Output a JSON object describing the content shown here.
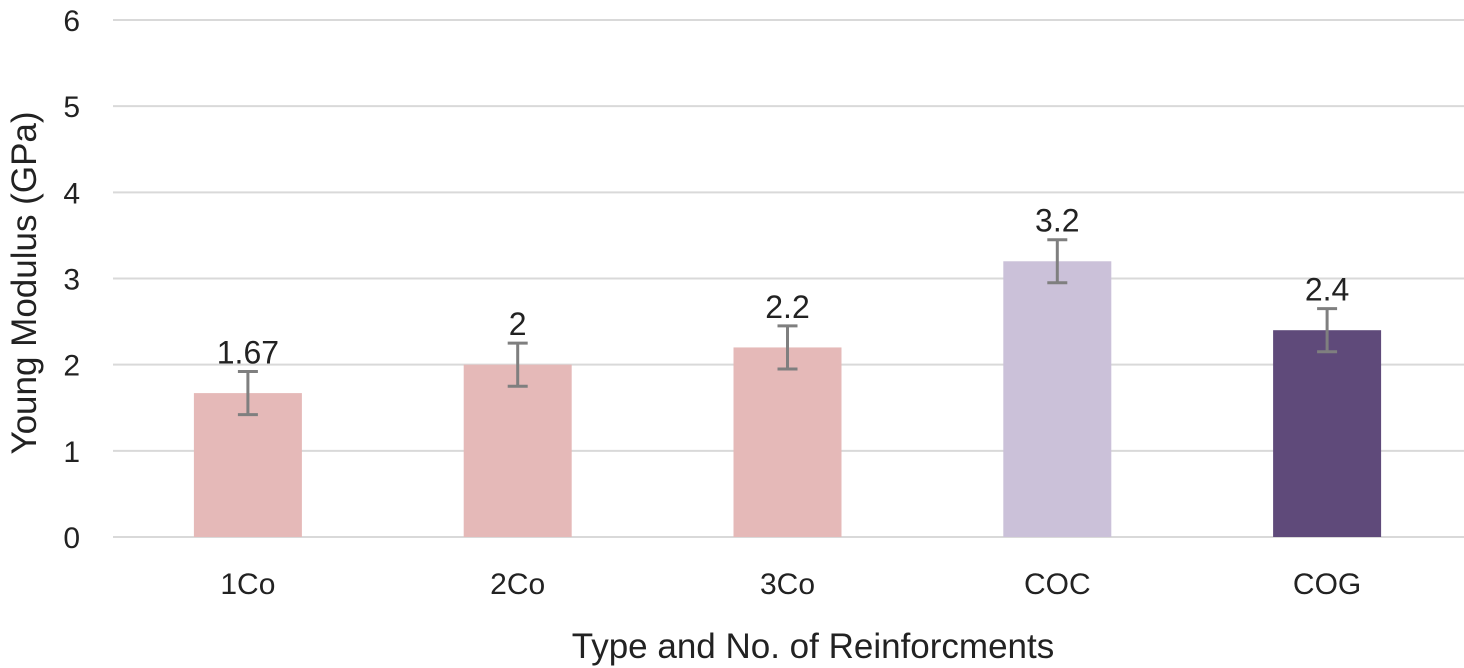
{
  "chart_data": {
    "type": "bar",
    "title": "",
    "xlabel": "Type and No. of Reinforcments",
    "ylabel": "Young Modulus (GPa)",
    "ylim": [
      0,
      6
    ],
    "y_ticks": [
      "0",
      "1",
      "2",
      "3",
      "4",
      "5",
      "6"
    ],
    "grid": true,
    "categories": [
      "1Co",
      "2Co",
      "3Co",
      "COC",
      "COG"
    ],
    "values": [
      1.67,
      2,
      2.2,
      3.2,
      2.4
    ],
    "value_labels": [
      "1.67",
      "2",
      "2.2",
      "3.2",
      "2.4"
    ],
    "error": [
      0.25,
      0.25,
      0.25,
      0.25,
      0.25
    ],
    "colors": [
      "#e5b9b8",
      "#e5b9b8",
      "#e5b9b8",
      "#cbc1d9",
      "#5f4a7a"
    ],
    "error_bar_color": "#7f7f7f",
    "grid_color": "#d9d9d9"
  }
}
